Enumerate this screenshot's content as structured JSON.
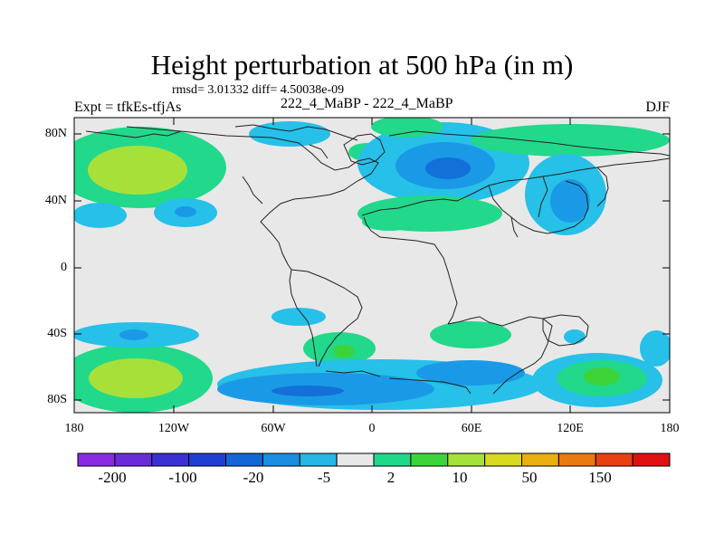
{
  "title": "Height perturbation at 500 hPa (in m)",
  "stats": "rmsd= 3.01332 diff= 4.50038e-09",
  "left_string": "Expt = tfkEs-tfjAs",
  "center_string": "222_4_MaBP - 222_4_MaBP",
  "right_string": "DJF",
  "y_ticks": [
    "80N",
    "40N",
    "0",
    "40S",
    "80S"
  ],
  "x_ticks": [
    "180",
    "120W",
    "60W",
    "0",
    "60E",
    "120E",
    "180"
  ],
  "colorbar_colors": [
    "#8a2be2",
    "#6a2bd8",
    "#3a2fd0",
    "#1f3fd4",
    "#1366d6",
    "#1a8ee0",
    "#27b7e6",
    "#e8e8e8",
    "#1fd98a",
    "#3dd43a",
    "#a6e03a",
    "#d8d820",
    "#e8b010",
    "#e87a10",
    "#e84010",
    "#e01010"
  ],
  "colorbar_labels": [
    "-200",
    "-100",
    "-20",
    "-5",
    "2",
    "10",
    "50",
    "150"
  ],
  "fill_colors": {
    "background": "#e8e8e8",
    "light_blue": "#27c0e8",
    "mid_blue": "#1a9ae6",
    "dark_blue": "#1270d8",
    "green": "#22d88a",
    "yellow_green": "#a8e03a"
  }
}
